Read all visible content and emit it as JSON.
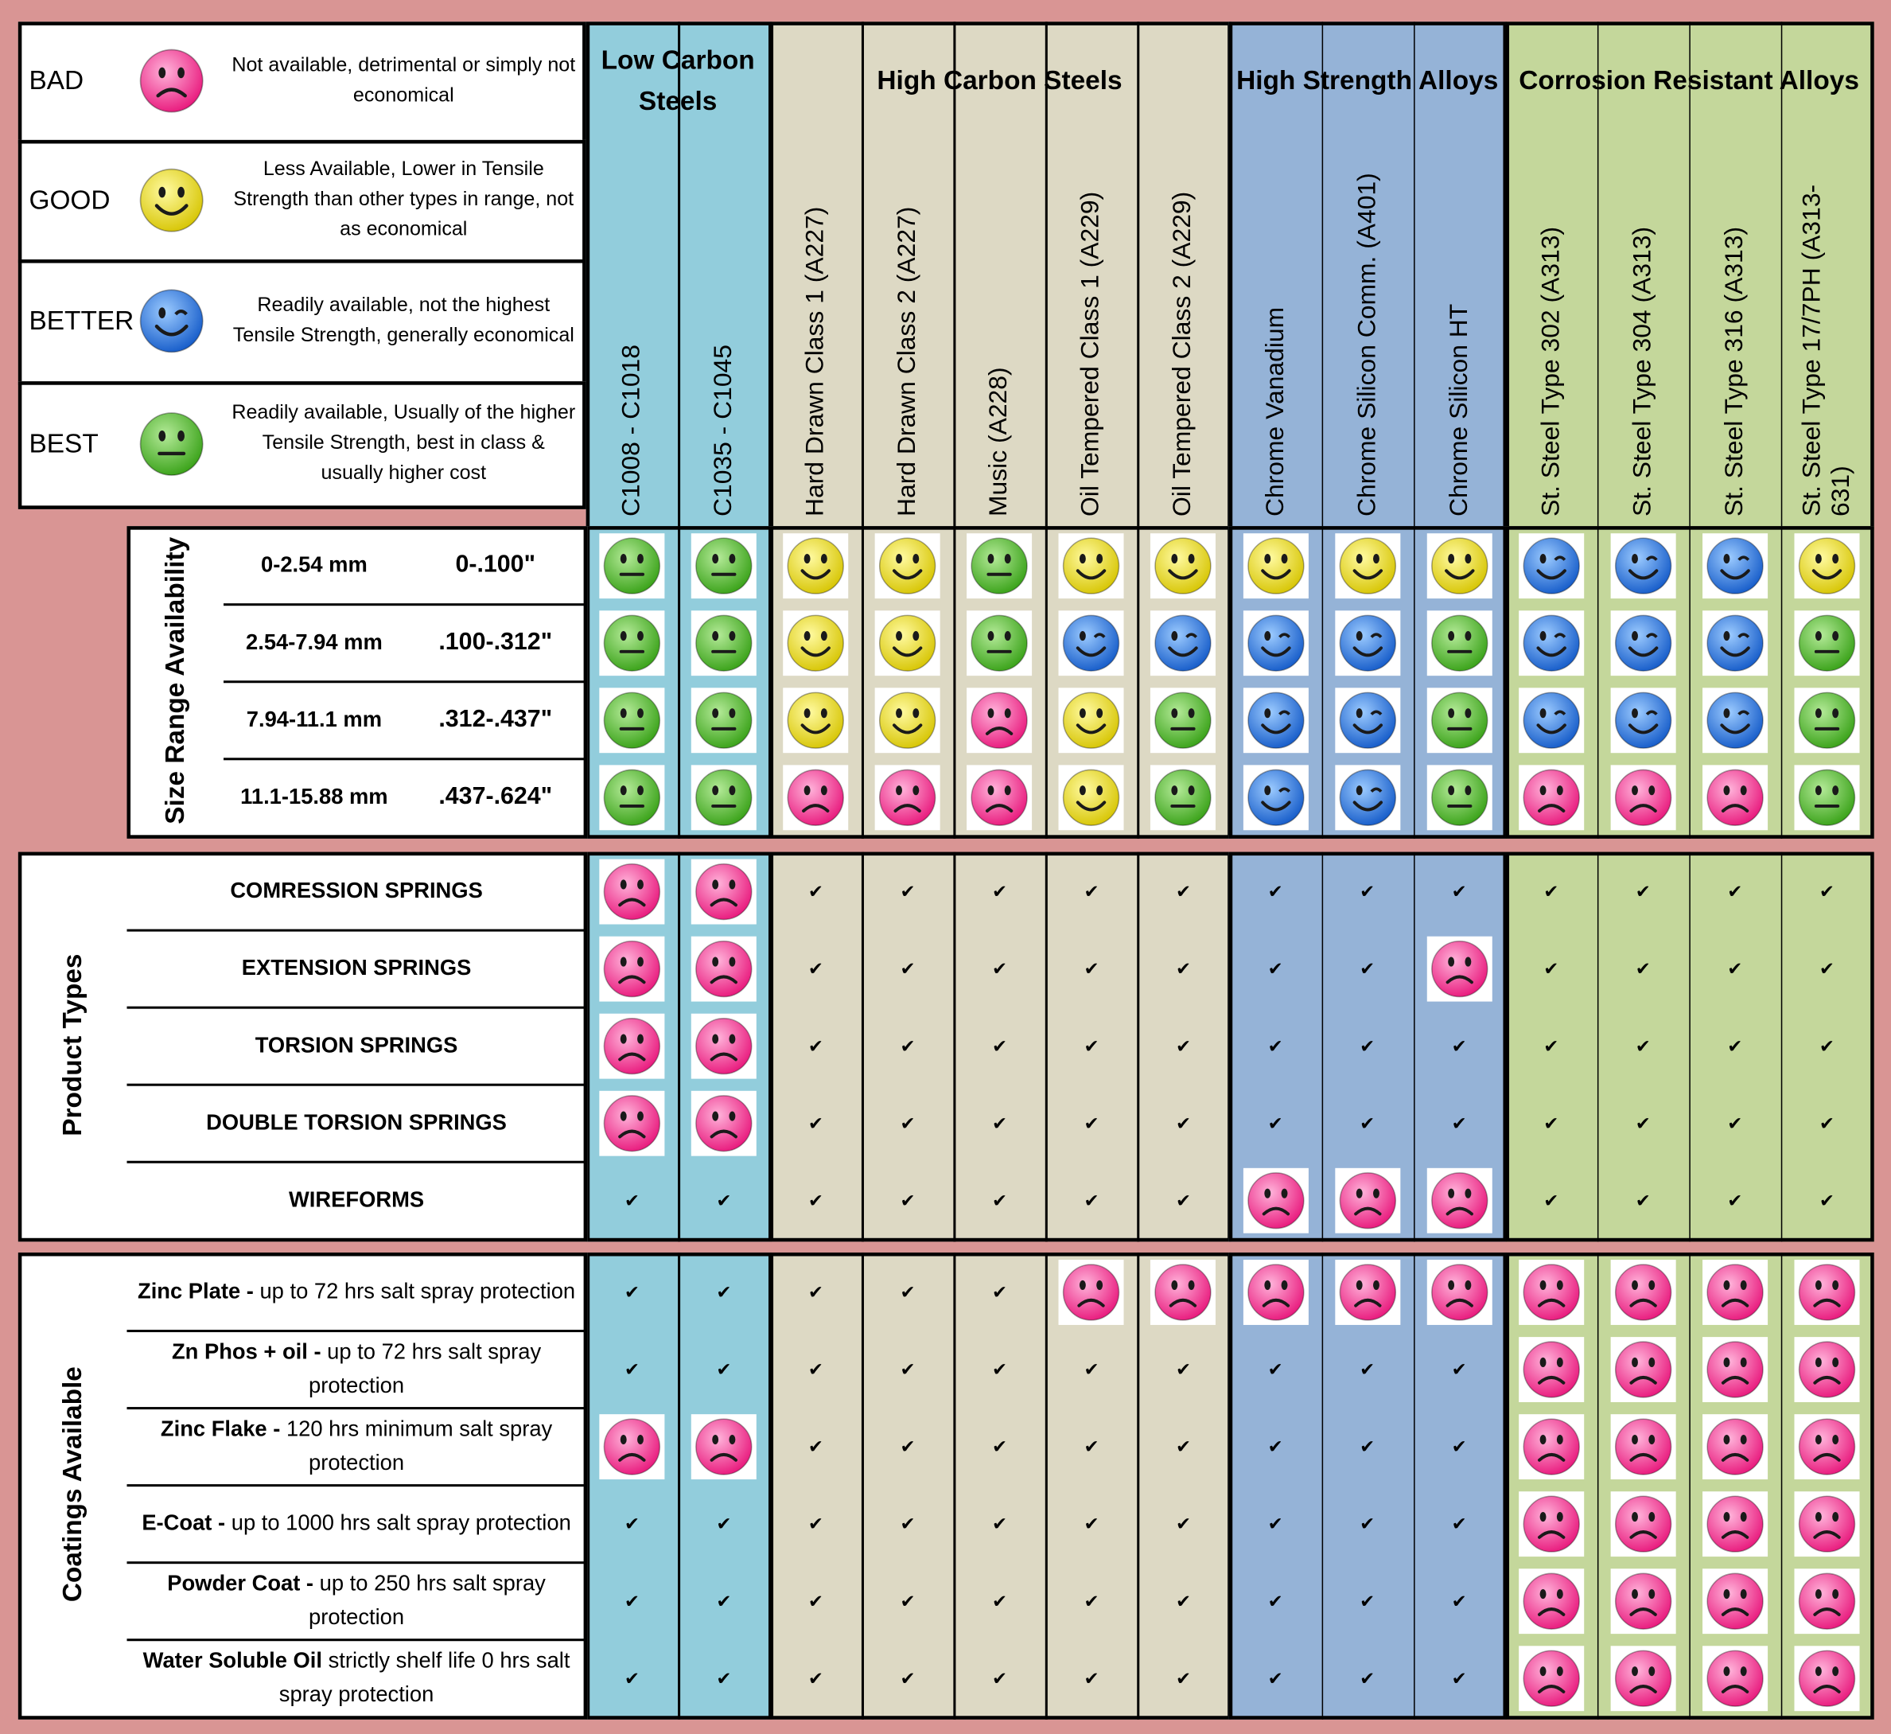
{
  "legend": [
    {
      "label": "BAD",
      "description": "Not available, detrimental or simply not economical"
    },
    {
      "label": "GOOD",
      "description": "Less Available, Lower in Tensile Strength than other types in range, not as economical"
    },
    {
      "label": "BETTER",
      "description": "Readily available, not the highest Tensile Strength, generally economical"
    },
    {
      "label": "BEST",
      "description": "Readily available, Usually of the higher Tensile Strength, best in class & usually higher cost"
    }
  ],
  "groups": [
    {
      "name": "Low Carbon Steels",
      "columns": [
        "C1008 - C1018",
        "C1035 - C1045"
      ]
    },
    {
      "name": "High Carbon Steels",
      "columns": [
        "Hard Drawn Class 1 (A227)",
        "Hard Drawn Class 2 (A227)",
        "Music (A228)",
        "Oil Tempered Class 1 (A229)",
        "Oil Tempered Class 2 (A229)"
      ]
    },
    {
      "name": "High Strength Alloys",
      "columns": [
        "Chrome Vanadium",
        "Chrome Silicon Comm. (A401)",
        "Chrome Silicon HT"
      ]
    },
    {
      "name": "Corrosion Resistant Alloys",
      "columns": [
        "St. Steel Type 302 (A313)",
        "St. Steel Type 304 (A313)",
        "St. Steel Type 316 (A313)",
        "St. Steel Type 17/7PH (A313-631)"
      ]
    }
  ],
  "size_range": {
    "title": "Size Range Availability",
    "rows": [
      {
        "metric": "0-2.54 mm",
        "imperial": "0-.100\"",
        "cells": [
          "BEST",
          "BEST",
          "GOOD",
          "GOOD",
          "BEST",
          "GOOD",
          "GOOD",
          "GOOD",
          "GOOD",
          "GOOD",
          "BETTER",
          "BETTER",
          "BETTER",
          "GOOD"
        ]
      },
      {
        "metric": "2.54-7.94 mm",
        "imperial": ".100-.312\"",
        "cells": [
          "BEST",
          "BEST",
          "GOOD",
          "GOOD",
          "BEST",
          "BETTER",
          "BETTER",
          "BETTER",
          "BETTER",
          "BEST",
          "BETTER",
          "BETTER",
          "BETTER",
          "BEST"
        ]
      },
      {
        "metric": "7.94-11.1 mm",
        "imperial": ".312-.437\"",
        "cells": [
          "BEST",
          "BEST",
          "GOOD",
          "GOOD",
          "BAD",
          "GOOD",
          "BEST",
          "BETTER",
          "BETTER",
          "BEST",
          "BETTER",
          "BETTER",
          "BETTER",
          "BEST"
        ]
      },
      {
        "metric": "11.1-15.88 mm",
        "imperial": ".437-.624\"",
        "cells": [
          "BEST",
          "BEST",
          "BAD",
          "BAD",
          "BAD",
          "GOOD",
          "BEST",
          "BETTER",
          "BETTER",
          "BEST",
          "BAD",
          "BAD",
          "BAD",
          "BEST"
        ]
      }
    ]
  },
  "product_types": {
    "title": "Product Types",
    "rows": [
      {
        "name": "COMRESSION SPRINGS",
        "cells": [
          "BAD",
          "BAD",
          "✔",
          "✔",
          "✔",
          "✔",
          "✔",
          "✔",
          "✔",
          "✔",
          "✔",
          "✔",
          "✔",
          "✔"
        ]
      },
      {
        "name": "EXTENSION SPRINGS",
        "cells": [
          "BAD",
          "BAD",
          "✔",
          "✔",
          "✔",
          "✔",
          "✔",
          "✔",
          "✔",
          "BAD",
          "✔",
          "✔",
          "✔",
          "✔"
        ]
      },
      {
        "name": "TORSION SPRINGS",
        "cells": [
          "BAD",
          "BAD",
          "✔",
          "✔",
          "✔",
          "✔",
          "✔",
          "✔",
          "✔",
          "✔",
          "✔",
          "✔",
          "✔",
          "✔"
        ]
      },
      {
        "name": "DOUBLE TORSION SPRINGS",
        "cells": [
          "BAD",
          "BAD",
          "✔",
          "✔",
          "✔",
          "✔",
          "✔",
          "✔",
          "✔",
          "✔",
          "✔",
          "✔",
          "✔",
          "✔"
        ]
      },
      {
        "name": "WIREFORMS",
        "cells": [
          "✔",
          "✔",
          "✔",
          "✔",
          "✔",
          "✔",
          "✔",
          "BAD",
          "BAD",
          "BAD",
          "✔",
          "✔",
          "✔",
          "✔"
        ]
      }
    ]
  },
  "coatings": {
    "title": "Coatings Available",
    "rows": [
      {
        "name": "Zinc Plate -",
        "detail": "up to 72 hrs salt spray protection",
        "cells": [
          "✔",
          "✔",
          "✔",
          "✔",
          "✔",
          "BAD",
          "BAD",
          "BAD",
          "BAD",
          "BAD",
          "BAD",
          "BAD",
          "BAD",
          "BAD"
        ]
      },
      {
        "name": "Zn Phos + oil -",
        "detail": "up to 72 hrs salt spray protection",
        "cells": [
          "✔",
          "✔",
          "✔",
          "✔",
          "✔",
          "✔",
          "✔",
          "✔",
          "✔",
          "✔",
          "BAD",
          "BAD",
          "BAD",
          "BAD"
        ]
      },
      {
        "name": "Zinc Flake -",
        "detail": "120 hrs minimum salt spray protection",
        "cells": [
          "BAD",
          "BAD",
          "✔",
          "✔",
          "✔",
          "✔",
          "✔",
          "✔",
          "✔",
          "✔",
          "BAD",
          "BAD",
          "BAD",
          "BAD"
        ]
      },
      {
        "name": "E-Coat -",
        "detail": "up to 1000 hrs salt spray protection",
        "cells": [
          "✔",
          "✔",
          "✔",
          "✔",
          "✔",
          "✔",
          "✔",
          "✔",
          "✔",
          "✔",
          "BAD",
          "BAD",
          "BAD",
          "BAD"
        ]
      },
      {
        "name": "Powder Coat -",
        "detail": "up to 250 hrs salt spray protection",
        "cells": [
          "✔",
          "✔",
          "✔",
          "✔",
          "✔",
          "✔",
          "✔",
          "✔",
          "✔",
          "✔",
          "BAD",
          "BAD",
          "BAD",
          "BAD"
        ]
      },
      {
        "name": "Water Soluble Oil",
        "detail": "strictly shelf life 0 hrs salt spray protection",
        "cells": [
          "✔",
          "✔",
          "✔",
          "✔",
          "✔",
          "✔",
          "✔",
          "✔",
          "✔",
          "✔",
          "BAD",
          "BAD",
          "BAD",
          "BAD"
        ]
      }
    ]
  }
}
